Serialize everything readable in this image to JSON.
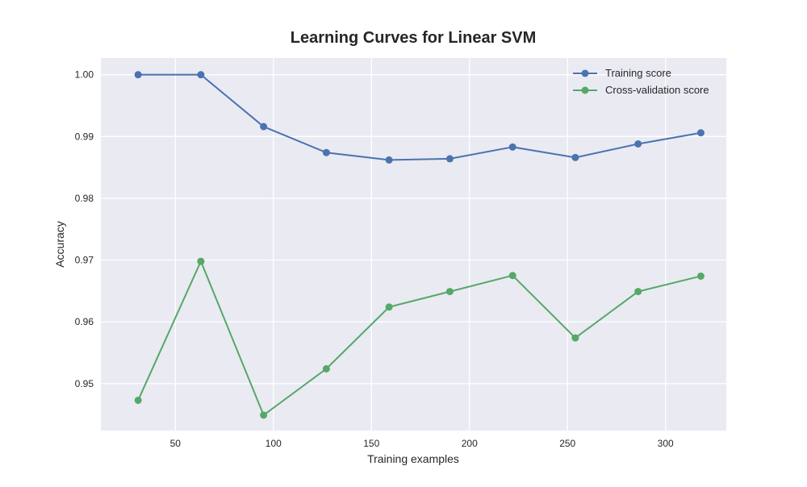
{
  "chart_data": {
    "type": "line",
    "title": "Learning Curves for Linear SVM",
    "xlabel": "Training examples",
    "ylabel": "Accuracy",
    "x": [
      31,
      63,
      95,
      127,
      159,
      190,
      222,
      254,
      286,
      318
    ],
    "xlim": [
      12,
      331
    ],
    "ylim": [
      0.9424,
      1.0027
    ],
    "xticks": [
      50,
      100,
      150,
      200,
      250,
      300
    ],
    "xtick_labels": [
      "50",
      "100",
      "150",
      "200",
      "250",
      "300"
    ],
    "yticks": [
      0.95,
      0.96,
      0.97,
      0.98,
      0.99,
      1.0
    ],
    "ytick_labels": [
      "0.95",
      "0.96",
      "0.97",
      "0.98",
      "0.99",
      "1.00"
    ],
    "grid": true,
    "legend_position": "top-right",
    "series": [
      {
        "name": "Training score",
        "color": "#4c72b0",
        "values": [
          1.0,
          1.0,
          0.9916,
          0.9874,
          0.9862,
          0.9864,
          0.9883,
          0.9866,
          0.9888,
          0.9906
        ]
      },
      {
        "name": "Cross-validation score",
        "color": "#55a868",
        "values": [
          0.9473,
          0.9698,
          0.9449,
          0.9524,
          0.9624,
          0.9649,
          0.9675,
          0.9574,
          0.9649,
          0.9674
        ]
      }
    ]
  }
}
